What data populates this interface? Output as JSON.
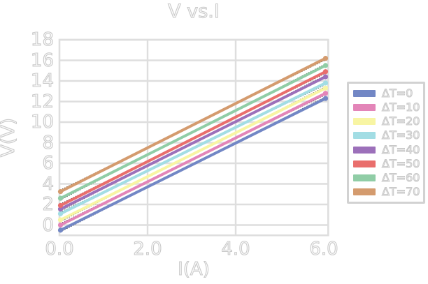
{
  "page": {
    "background": "#ffffff"
  },
  "chart_data": {
    "type": "line",
    "title": "V vs.I",
    "xlabel": "I(A)",
    "ylabel": "V(V)",
    "x": [
      0,
      6
    ],
    "series": [
      {
        "name": "ΔT=0",
        "color": "#7287c5",
        "values": [
          -0.5,
          12.3
        ]
      },
      {
        "name": "ΔT=10",
        "color": "#e385b8",
        "values": [
          0.0,
          12.8
        ]
      },
      {
        "name": "ΔT=20",
        "color": "#f8f5a3",
        "values": [
          0.5,
          13.3
        ]
      },
      {
        "name": "ΔT=30",
        "color": "#a2dde4",
        "values": [
          1.1,
          13.8
        ]
      },
      {
        "name": "ΔT=40",
        "color": "#9c70ba",
        "values": [
          1.55,
          14.4
        ]
      },
      {
        "name": "ΔT=50",
        "color": "#e96e6c",
        "values": [
          1.9,
          14.9
        ]
      },
      {
        "name": "ΔT=60",
        "color": "#90cda6",
        "values": [
          2.6,
          15.5
        ]
      },
      {
        "name": "ΔT=70",
        "color": "#d49b6e",
        "values": [
          3.25,
          16.2
        ]
      }
    ],
    "fit_lines": {
      "style": "dotted",
      "color": "#1a1a1a"
    },
    "xticks": [
      "0.0",
      "2.0",
      "4.0",
      "6.0"
    ],
    "xtick_values": [
      0,
      2,
      4,
      6
    ],
    "yticks": [
      "0",
      "2",
      "4",
      "6",
      "8",
      "10",
      "12",
      "14",
      "16",
      "18"
    ],
    "ytick_values": [
      0,
      2,
      4,
      6,
      8,
      10,
      12,
      14,
      16,
      18
    ],
    "xlim": [
      0,
      6.1
    ],
    "ylim": [
      -1,
      18
    ],
    "grid": true,
    "legend_position": "right",
    "colors": {
      "grid": "#dedede",
      "text_fill": "#fdfdfd",
      "text_outline": "#c9c9c9",
      "legend_border": "#d2d2d2",
      "background": "#ffffff"
    }
  }
}
